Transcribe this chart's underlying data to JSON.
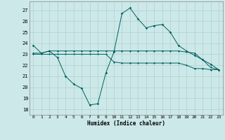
{
  "xlabel": "Humidex (Indice chaleur)",
  "ylabel": "",
  "bg_color": "#cce8e8",
  "grid_color": "#b0d0d0",
  "line_color": "#006060",
  "xlim": [
    -0.5,
    23.5
  ],
  "ylim": [
    17.5,
    27.8
  ],
  "yticks": [
    18,
    19,
    20,
    21,
    22,
    23,
    24,
    25,
    26,
    27
  ],
  "xticks": [
    0,
    1,
    2,
    3,
    4,
    5,
    6,
    7,
    8,
    9,
    10,
    11,
    12,
    13,
    14,
    15,
    16,
    17,
    18,
    19,
    20,
    21,
    22,
    23
  ],
  "line1_x": [
    0,
    1,
    2,
    3,
    4,
    5,
    6,
    7,
    8,
    9,
    10,
    11,
    12,
    13,
    14,
    15,
    16,
    17,
    18,
    19,
    20,
    21,
    22,
    23
  ],
  "line1_y": [
    23.8,
    23.1,
    23.3,
    22.7,
    21.0,
    20.3,
    19.9,
    18.4,
    18.5,
    21.3,
    23.2,
    26.7,
    27.2,
    26.2,
    25.4,
    25.6,
    25.7,
    25.0,
    23.8,
    23.3,
    22.9,
    22.5,
    22.1,
    21.6
  ],
  "line2_x": [
    0,
    1,
    2,
    3,
    4,
    5,
    6,
    7,
    8,
    9,
    10,
    11,
    12,
    13,
    14,
    15,
    16,
    17,
    18,
    19,
    20,
    21,
    22,
    23
  ],
  "line2_y": [
    23.1,
    23.1,
    23.3,
    23.3,
    23.3,
    23.3,
    23.3,
    23.3,
    23.3,
    23.3,
    23.3,
    23.3,
    23.3,
    23.3,
    23.3,
    23.3,
    23.3,
    23.3,
    23.3,
    23.2,
    23.1,
    22.5,
    21.8,
    21.6
  ],
  "line3_x": [
    0,
    1,
    2,
    3,
    4,
    5,
    6,
    7,
    8,
    9,
    10,
    11,
    12,
    13,
    14,
    15,
    16,
    17,
    18,
    19,
    20,
    21,
    22,
    23
  ],
  "line3_y": [
    23.0,
    23.0,
    23.0,
    23.0,
    23.0,
    23.0,
    23.0,
    23.0,
    23.0,
    23.0,
    22.3,
    22.2,
    22.2,
    22.2,
    22.2,
    22.2,
    22.2,
    22.2,
    22.2,
    22.0,
    21.7,
    21.7,
    21.6,
    21.6
  ]
}
